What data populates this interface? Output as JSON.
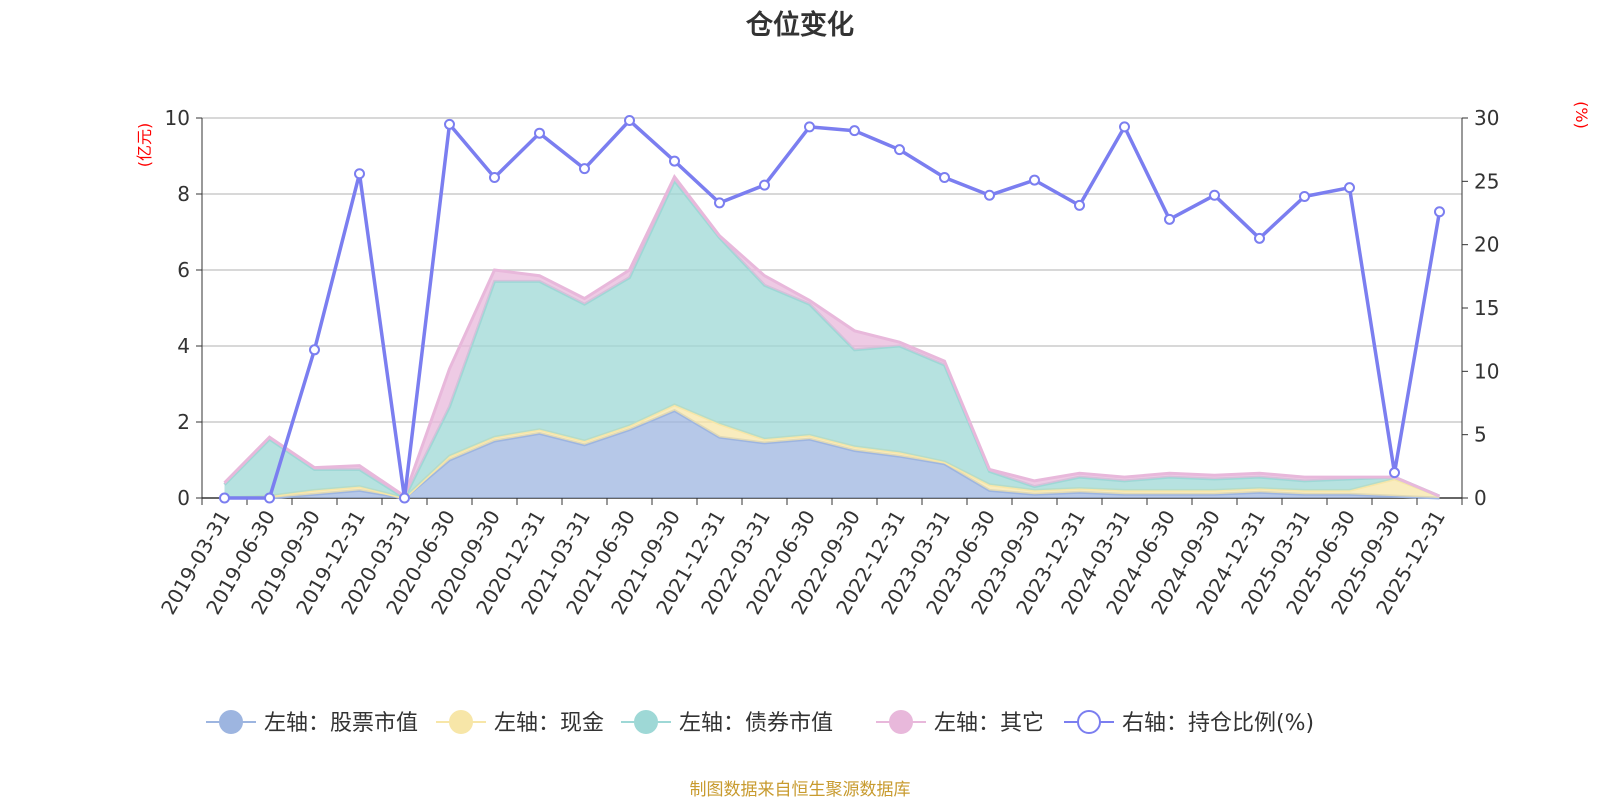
{
  "chart_data": {
    "type": "area",
    "title": "仓位变化",
    "left_axis": {
      "unit": "(亿元)",
      "ylim": [
        0,
        10
      ],
      "ticks": [
        "0",
        "2",
        "4",
        "6",
        "8",
        "10"
      ]
    },
    "right_axis": {
      "unit": "(%)",
      "ylim": [
        0,
        30
      ],
      "ticks": [
        "0",
        "5",
        "10",
        "15",
        "20",
        "25",
        "30"
      ]
    },
    "categories": [
      "2019-03-31",
      "2019-06-30",
      "2019-09-30",
      "2019-12-31",
      "2020-03-31",
      "2020-06-30",
      "2020-09-30",
      "2020-12-31",
      "2021-03-31",
      "2021-06-30",
      "2021-09-30",
      "2021-12-31",
      "2022-03-31",
      "2022-06-30",
      "2022-09-30",
      "2022-12-31",
      "2023-03-31",
      "2023-06-30",
      "2023-09-30",
      "2023-12-31",
      "2024-03-31",
      "2024-06-30",
      "2024-09-30",
      "2024-12-31",
      "2025-03-31",
      "2025-06-30",
      "2025-09-30",
      "2025-12-31"
    ],
    "stacked_series": [
      {
        "name": "左轴：股票市值",
        "color": "#9db5e0",
        "values": [
          0.0,
          0.0,
          0.1,
          0.2,
          0.0,
          1.0,
          1.5,
          1.7,
          1.4,
          1.8,
          2.3,
          1.6,
          1.45,
          1.55,
          1.25,
          1.1,
          0.9,
          0.2,
          0.1,
          0.15,
          0.1,
          0.1,
          0.1,
          0.15,
          0.1,
          0.1,
          0.05,
          0.0
        ]
      },
      {
        "name": "左轴：现金",
        "color": "#f7e6a8",
        "values": [
          0.0,
          0.05,
          0.1,
          0.1,
          0.0,
          0.1,
          0.1,
          0.1,
          0.1,
          0.1,
          0.15,
          0.35,
          0.1,
          0.1,
          0.1,
          0.1,
          0.05,
          0.15,
          0.1,
          0.1,
          0.1,
          0.1,
          0.1,
          0.1,
          0.1,
          0.1,
          0.45,
          0.05
        ]
      },
      {
        "name": "左轴：债券市值",
        "color": "#9ed8d6",
        "values": [
          0.35,
          1.5,
          0.55,
          0.45,
          0.0,
          1.3,
          4.1,
          3.9,
          3.6,
          3.9,
          5.9,
          4.9,
          4.05,
          3.45,
          2.55,
          2.8,
          2.55,
          0.35,
          0.1,
          0.3,
          0.25,
          0.35,
          0.3,
          0.3,
          0.25,
          0.3,
          0.05,
          0.0
        ]
      },
      {
        "name": "左轴：其它",
        "color": "#e8b8db",
        "values": [
          0.05,
          0.05,
          0.05,
          0.1,
          0.05,
          1.0,
          0.3,
          0.15,
          0.15,
          0.2,
          0.1,
          0.05,
          0.25,
          0.1,
          0.5,
          0.1,
          0.1,
          0.05,
          0.15,
          0.1,
          0.1,
          0.1,
          0.1,
          0.1,
          0.1,
          0.05,
          0.0,
          0.0
        ]
      }
    ],
    "line_series": {
      "name": "右轴：持仓比例(%)",
      "color": "#7b7ef0",
      "values": [
        0.0,
        0.0,
        11.7,
        25.6,
        0.0,
        29.5,
        25.3,
        28.8,
        26.0,
        29.8,
        26.6,
        23.3,
        24.7,
        29.3,
        29.0,
        27.5,
        25.3,
        23.9,
        25.1,
        23.1,
        29.3,
        22.0,
        23.9,
        20.5,
        23.8,
        24.5,
        2.0,
        22.6
      ]
    },
    "legend": {
      "placement": "bottom"
    },
    "grid": true
  },
  "footer": {
    "source": "制图数据来自恒生聚源数据库"
  }
}
